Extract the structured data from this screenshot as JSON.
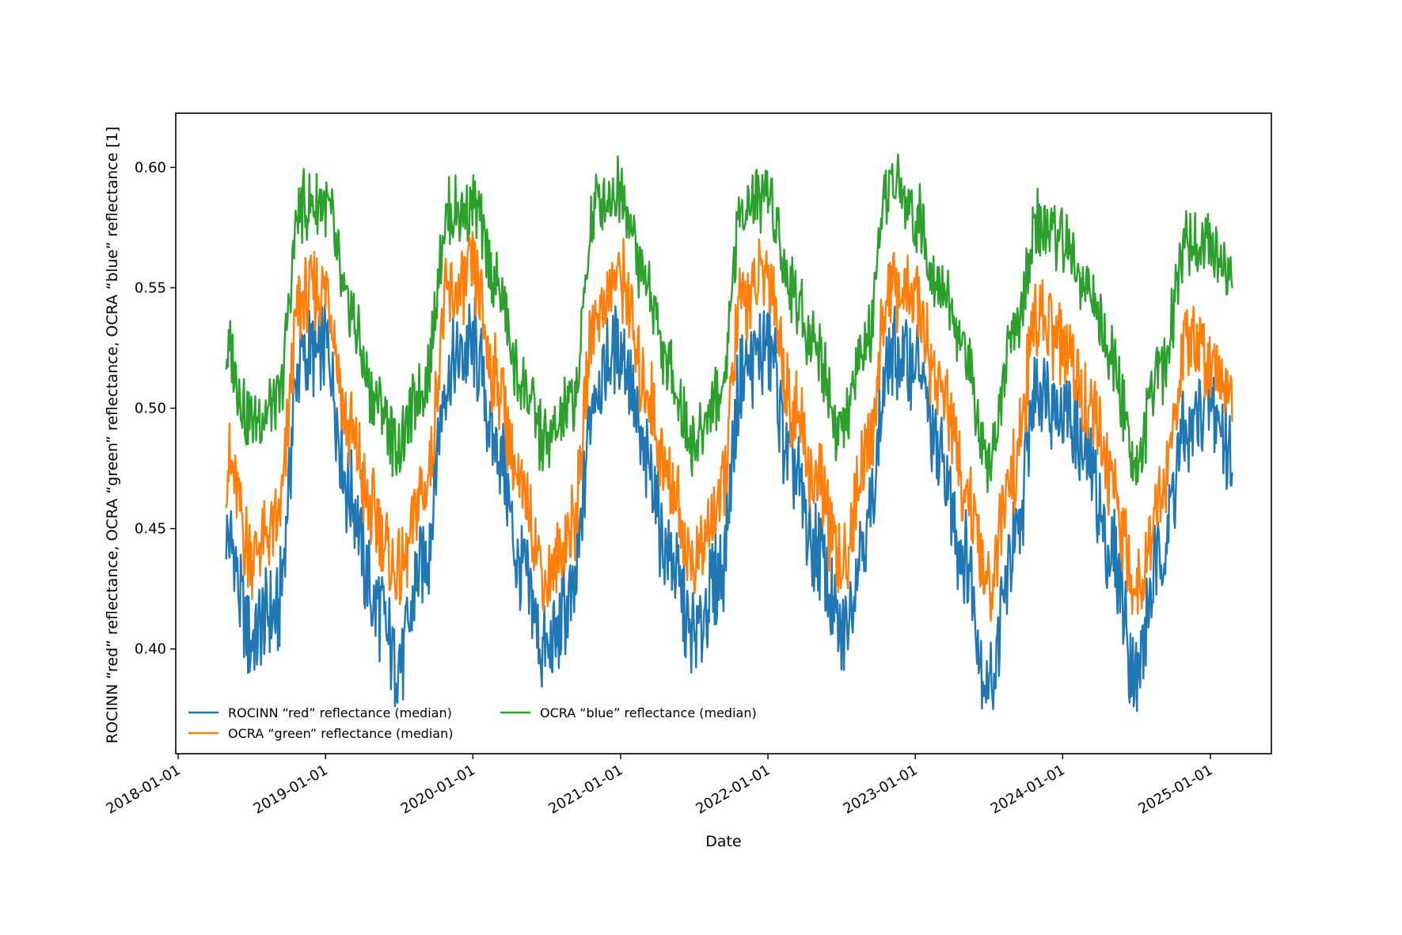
{
  "chart_data": {
    "type": "line",
    "title": "",
    "xlabel": "Date",
    "ylabel": "ROCINN “red” reflectance, OCRA “green” reflectance, OCRA “blue” reflectance [1]",
    "x_type": "date",
    "xlim": [
      "2017-12-26",
      "2025-06-01"
    ],
    "ylim": [
      0.3565,
      0.6225
    ],
    "x_ticks": [
      "2018-01-01",
      "2019-01-01",
      "2020-01-01",
      "2021-01-01",
      "2022-01-01",
      "2023-01-01",
      "2024-01-01",
      "2025-01-01"
    ],
    "y_ticks": [
      "0.40",
      "0.45",
      "0.50",
      "0.55",
      "0.60"
    ],
    "grid": false,
    "legend": "lower-left, 2 columns",
    "date_range": [
      "2018-04-30",
      "2025-02-25"
    ],
    "series": [
      {
        "name": "ROCINN “red” reflectance (median)",
        "color": "#1f77b4",
        "x": [
          "2018-04-30",
          "2018-07-01",
          "2018-09-01",
          "2018-11-01",
          "2019-01-01",
          "2019-03-01",
          "2019-05-01",
          "2019-07-01",
          "2019-09-01",
          "2019-11-01",
          "2020-01-01",
          "2020-03-01",
          "2020-05-01",
          "2020-07-01",
          "2020-09-01",
          "2020-11-01",
          "2021-01-01",
          "2021-03-01",
          "2021-05-01",
          "2021-07-01",
          "2021-09-01",
          "2021-11-01",
          "2022-01-01",
          "2022-03-01",
          "2022-05-01",
          "2022-07-01",
          "2022-09-01",
          "2022-11-01",
          "2023-01-01",
          "2023-03-01",
          "2023-05-01",
          "2023-07-01",
          "2023-09-01",
          "2023-11-01",
          "2024-01-01",
          "2024-03-01",
          "2024-05-01",
          "2024-07-01",
          "2024-09-01",
          "2024-11-01",
          "2025-01-01",
          "2025-02-25"
        ],
        "y": [
          0.447,
          0.405,
          0.415,
          0.52,
          0.525,
          0.465,
          0.42,
          0.395,
          0.435,
          0.515,
          0.525,
          0.485,
          0.43,
          0.398,
          0.42,
          0.51,
          0.527,
          0.48,
          0.44,
          0.405,
          0.43,
          0.515,
          0.525,
          0.475,
          0.44,
          0.405,
          0.45,
          0.52,
          0.52,
          0.48,
          0.44,
          0.385,
          0.44,
          0.51,
          0.5,
          0.48,
          0.44,
          0.39,
          0.44,
          0.49,
          0.5,
          0.48
        ]
      },
      {
        "name": "OCRA “green” reflectance (median)",
        "color": "#ff7f0e",
        "x": [
          "2018-04-30",
          "2018-07-01",
          "2018-09-01",
          "2018-11-01",
          "2019-01-01",
          "2019-03-01",
          "2019-05-01",
          "2019-07-01",
          "2019-09-01",
          "2019-11-01",
          "2020-01-01",
          "2020-03-01",
          "2020-05-01",
          "2020-07-01",
          "2020-09-01",
          "2020-11-01",
          "2021-01-01",
          "2021-03-01",
          "2021-05-01",
          "2021-07-01",
          "2021-09-01",
          "2021-11-01",
          "2022-01-01",
          "2022-03-01",
          "2022-05-01",
          "2022-07-01",
          "2022-09-01",
          "2022-11-01",
          "2023-01-01",
          "2023-03-01",
          "2023-05-01",
          "2023-07-01",
          "2023-09-01",
          "2023-11-01",
          "2024-01-01",
          "2024-03-01",
          "2024-05-01",
          "2024-07-01",
          "2024-09-01",
          "2024-11-01",
          "2025-01-01",
          "2025-02-25"
        ],
        "y": [
          0.478,
          0.44,
          0.45,
          0.545,
          0.55,
          0.49,
          0.455,
          0.43,
          0.465,
          0.545,
          0.555,
          0.51,
          0.465,
          0.43,
          0.45,
          0.54,
          0.555,
          0.51,
          0.47,
          0.435,
          0.46,
          0.545,
          0.555,
          0.5,
          0.47,
          0.435,
          0.48,
          0.55,
          0.545,
          0.51,
          0.47,
          0.425,
          0.475,
          0.54,
          0.525,
          0.505,
          0.47,
          0.425,
          0.465,
          0.525,
          0.52,
          0.51
        ]
      },
      {
        "name": "OCRA “blue” reflectance (median)",
        "color": "#2ca02c",
        "x": [
          "2018-04-30",
          "2018-07-01",
          "2018-09-01",
          "2018-11-01",
          "2019-01-01",
          "2019-03-01",
          "2019-05-01",
          "2019-07-01",
          "2019-09-01",
          "2019-11-01",
          "2020-01-01",
          "2020-03-01",
          "2020-05-01",
          "2020-07-01",
          "2020-09-01",
          "2020-11-01",
          "2021-01-01",
          "2021-03-01",
          "2021-05-01",
          "2021-07-01",
          "2021-09-01",
          "2021-11-01",
          "2022-01-01",
          "2022-03-01",
          "2022-05-01",
          "2022-07-01",
          "2022-09-01",
          "2022-11-01",
          "2023-01-01",
          "2023-03-01",
          "2023-05-01",
          "2023-07-01",
          "2023-09-01",
          "2023-11-01",
          "2024-01-01",
          "2024-03-01",
          "2024-05-01",
          "2024-07-01",
          "2024-09-01",
          "2024-11-01",
          "2025-01-01",
          "2025-02-25"
        ],
        "y": [
          0.525,
          0.495,
          0.5,
          0.583,
          0.585,
          0.54,
          0.505,
          0.485,
          0.51,
          0.58,
          0.585,
          0.55,
          0.51,
          0.485,
          0.5,
          0.585,
          0.59,
          0.555,
          0.515,
          0.485,
          0.505,
          0.585,
          0.59,
          0.55,
          0.525,
          0.49,
          0.525,
          0.595,
          0.58,
          0.555,
          0.525,
          0.48,
          0.53,
          0.575,
          0.57,
          0.55,
          0.52,
          0.48,
          0.515,
          0.57,
          0.57,
          0.553
        ]
      }
    ]
  }
}
